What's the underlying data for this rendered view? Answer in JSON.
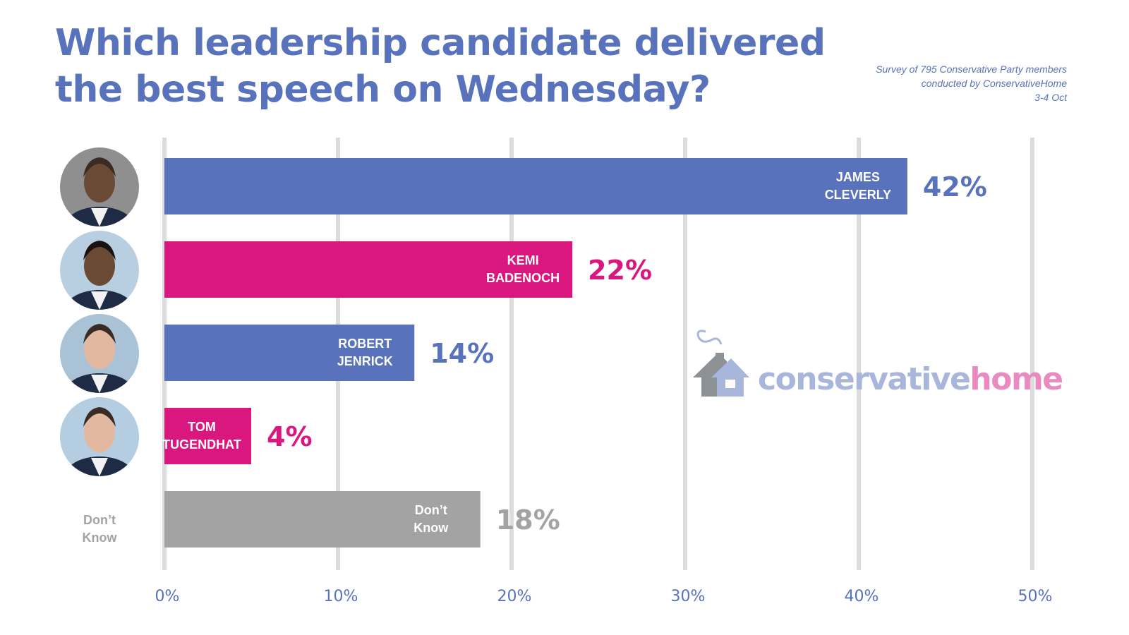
{
  "header": {
    "title_line1": "Which leadership candidate delivered",
    "title_line2": "the best speech on Wednesday?",
    "source_line1": "Survey of 795 Conservative Party members",
    "source_line2": "conducted by ConservativeHome",
    "source_line3": "3-4  Oct"
  },
  "logo": {
    "text_part1": "conservative",
    "text_part2": "home",
    "color_part1": "#A9B6DC",
    "color_part2": "#E98AC0"
  },
  "colors": {
    "blue": "#5872BB",
    "pink": "#D9177E",
    "grey": "#A3A3A3",
    "grid": "#DCDCDC"
  },
  "chart_data": {
    "type": "bar",
    "orientation": "horizontal",
    "title": "Which leadership candidate delivered the best speech on Wednesday?",
    "xlabel": "",
    "ylabel": "",
    "xlim": [
      0,
      50
    ],
    "x_ticks": [
      0,
      10,
      20,
      30,
      40,
      50
    ],
    "x_tick_labels": [
      "0%",
      "10%",
      "20%",
      "30%",
      "40%",
      "50%"
    ],
    "grid": true,
    "categories": [
      "JAMES CLEVERLY",
      "KEMI BADENOCH",
      "ROBERT JENRICK",
      "TOM TUGENDHAT",
      "Don't Know"
    ],
    "values": [
      42,
      22,
      14,
      4,
      18
    ],
    "drawn_bar_lengths": [
      42.8,
      23.5,
      14.4,
      5.0,
      18.2
    ],
    "value_labels": [
      "42%",
      "22%",
      "14%",
      "4%",
      "18%"
    ],
    "bars": [
      {
        "line1": "JAMES",
        "line2": "CLEVERLY",
        "value": 42,
        "drawn": 42.8,
        "label": "42%",
        "color": "#5872BB",
        "photo": "person-portrait",
        "bg": "#8f8f8f"
      },
      {
        "line1": "KEMI",
        "line2": "BADENOCH",
        "value": 22,
        "drawn": 23.5,
        "label": "22%",
        "color": "#D9177E",
        "photo": "person-portrait",
        "bg": "#b7cfe0"
      },
      {
        "line1": "ROBERT",
        "line2": "JENRICK",
        "value": 14,
        "drawn": 14.4,
        "label": "14%",
        "color": "#5872BB",
        "photo": "person-portrait",
        "bg": "#a9c2d6"
      },
      {
        "line1": "TOM",
        "line2": "TUGENDHAT",
        "value": 4,
        "drawn": 5.0,
        "label": "4%",
        "color": "#D9177E",
        "photo": "person-portrait",
        "bg": "#b4cde0"
      },
      {
        "line1": "Don’t",
        "line2": "Know",
        "value": 18,
        "drawn": 18.2,
        "label": "18%",
        "color": "#A3A3A3",
        "photo": null,
        "side_label1": "Don’t",
        "side_label2": "Know"
      }
    ]
  }
}
